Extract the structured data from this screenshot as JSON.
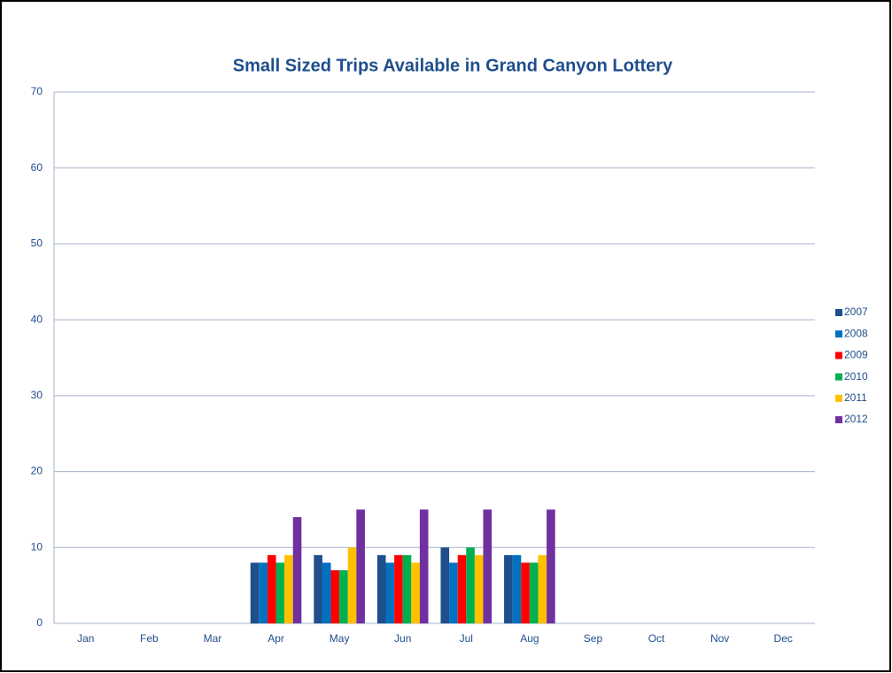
{
  "chart_data": {
    "type": "bar",
    "title": "Small Sized Trips Available in Grand Canyon Lottery",
    "categories": [
      "Jan",
      "Feb",
      "Mar",
      "Apr",
      "May",
      "Jun",
      "Jul",
      "Aug",
      "Sep",
      "Oct",
      "Nov",
      "Dec"
    ],
    "series": [
      {
        "name": "2007",
        "color": "#1f4e8c",
        "values": [
          null,
          null,
          null,
          8,
          9,
          9,
          10,
          9,
          null,
          null,
          null,
          null
        ]
      },
      {
        "name": "2008",
        "color": "#0070c0",
        "values": [
          null,
          null,
          null,
          8,
          8,
          8,
          8,
          9,
          null,
          null,
          null,
          null
        ]
      },
      {
        "name": "2009",
        "color": "#ff0000",
        "values": [
          null,
          null,
          null,
          9,
          7,
          9,
          9,
          8,
          null,
          null,
          null,
          null
        ]
      },
      {
        "name": "2010",
        "color": "#00b050",
        "values": [
          null,
          null,
          null,
          8,
          7,
          9,
          10,
          8,
          null,
          null,
          null,
          null
        ]
      },
      {
        "name": "2011",
        "color": "#ffc000",
        "values": [
          null,
          null,
          null,
          9,
          10,
          8,
          9,
          9,
          null,
          null,
          null,
          null
        ]
      },
      {
        "name": "2012",
        "color": "#7030a0",
        "values": [
          null,
          null,
          null,
          14,
          15,
          15,
          15,
          15,
          null,
          null,
          null,
          null
        ]
      }
    ],
    "ylim": [
      0,
      70
    ],
    "yticks": [
      0,
      10,
      20,
      30,
      40,
      50,
      60,
      70
    ],
    "grid": true,
    "legend": "right"
  }
}
